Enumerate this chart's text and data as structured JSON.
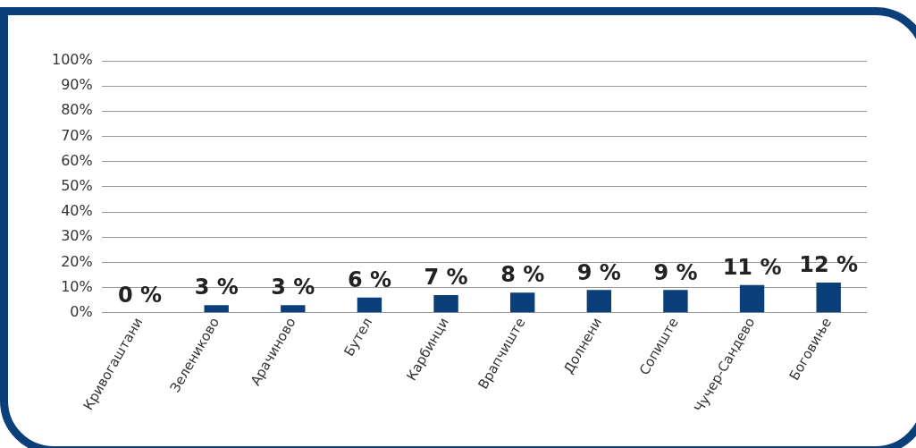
{
  "chart_data": {
    "type": "bar",
    "categories": [
      "Кривогаштани",
      "Зелениково",
      "Арачиново",
      "Бутел",
      "Карбинци",
      "Врапчиште",
      "Долнени",
      "Сопиште",
      "Чучер-Сандево",
      "Боговиње"
    ],
    "values": [
      0,
      3,
      3,
      6,
      7,
      8,
      9,
      9,
      11,
      12
    ],
    "value_labels": [
      "0 %",
      "3 %",
      "3 %",
      "6 %",
      "7 %",
      "8 %",
      "9 %",
      "9 %",
      "11 %",
      "12 %"
    ],
    "color": "#0b3f7a",
    "ylim": [
      0,
      100
    ],
    "yticks": [
      {
        "value": 0,
        "label": "0%"
      },
      {
        "value": 10,
        "label": "10%"
      },
      {
        "value": 20,
        "label": "20%"
      },
      {
        "value": 30,
        "label": "30%"
      },
      {
        "value": 40,
        "label": "40%"
      },
      {
        "value": 50,
        "label": "50%"
      },
      {
        "value": 60,
        "label": "60%"
      },
      {
        "value": 70,
        "label": "70%"
      },
      {
        "value": 80,
        "label": "80%"
      },
      {
        "value": 90,
        "label": "90%"
      },
      {
        "value": 100,
        "label": "100%"
      }
    ],
    "grid": "y",
    "legend": false
  }
}
